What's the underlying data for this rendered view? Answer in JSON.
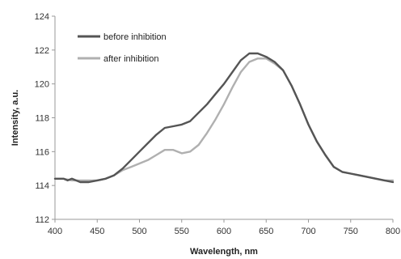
{
  "chart_data": {
    "type": "line",
    "title": "",
    "xlabel": "Wavelength, nm",
    "ylabel": "Intensity, a.u.",
    "xlim": [
      400,
      800
    ],
    "ylim": [
      112,
      124
    ],
    "x_ticks": [
      400,
      450,
      500,
      550,
      600,
      650,
      700,
      750,
      800
    ],
    "y_ticks": [
      112,
      114,
      116,
      118,
      120,
      122,
      124
    ],
    "x_tick_labels": [
      "400",
      "450",
      "500",
      "550",
      "600",
      "650",
      "700",
      "750",
      "800"
    ],
    "y_tick_labels": [
      "112",
      "114",
      "116",
      "118",
      "120",
      "122",
      "124"
    ],
    "grid": false,
    "legend_position": "top-left",
    "series": [
      {
        "name": "before inhibition",
        "color": "#555555",
        "points": [
          [
            400,
            114.4
          ],
          [
            410,
            114.4
          ],
          [
            415,
            114.3
          ],
          [
            420,
            114.4
          ],
          [
            425,
            114.3
          ],
          [
            430,
            114.2
          ],
          [
            440,
            114.2
          ],
          [
            450,
            114.3
          ],
          [
            460,
            114.4
          ],
          [
            470,
            114.6
          ],
          [
            480,
            115.0
          ],
          [
            490,
            115.5
          ],
          [
            500,
            116.0
          ],
          [
            510,
            116.5
          ],
          [
            520,
            117.0
          ],
          [
            530,
            117.4
          ],
          [
            540,
            117.5
          ],
          [
            550,
            117.6
          ],
          [
            560,
            117.8
          ],
          [
            570,
            118.3
          ],
          [
            580,
            118.8
          ],
          [
            590,
            119.4
          ],
          [
            600,
            120.0
          ],
          [
            610,
            120.7
          ],
          [
            620,
            121.4
          ],
          [
            630,
            121.8
          ],
          [
            640,
            121.8
          ],
          [
            650,
            121.6
          ],
          [
            660,
            121.3
          ],
          [
            670,
            120.8
          ],
          [
            680,
            119.9
          ],
          [
            690,
            118.8
          ],
          [
            700,
            117.6
          ],
          [
            710,
            116.6
          ],
          [
            720,
            115.8
          ],
          [
            730,
            115.1
          ],
          [
            740,
            114.8
          ],
          [
            750,
            114.7
          ],
          [
            760,
            114.6
          ],
          [
            770,
            114.5
          ],
          [
            780,
            114.4
          ],
          [
            790,
            114.3
          ],
          [
            800,
            114.2
          ]
        ]
      },
      {
        "name": "after inhibition",
        "color": "#b0b0b0",
        "points": [
          [
            400,
            114.4
          ],
          [
            410,
            114.4
          ],
          [
            420,
            114.3
          ],
          [
            430,
            114.3
          ],
          [
            440,
            114.3
          ],
          [
            450,
            114.3
          ],
          [
            460,
            114.4
          ],
          [
            470,
            114.6
          ],
          [
            480,
            114.9
          ],
          [
            490,
            115.1
          ],
          [
            500,
            115.3
          ],
          [
            510,
            115.5
          ],
          [
            520,
            115.8
          ],
          [
            530,
            116.1
          ],
          [
            540,
            116.1
          ],
          [
            550,
            115.9
          ],
          [
            560,
            116.0
          ],
          [
            570,
            116.4
          ],
          [
            580,
            117.1
          ],
          [
            590,
            117.9
          ],
          [
            600,
            118.8
          ],
          [
            610,
            119.8
          ],
          [
            620,
            120.7
          ],
          [
            630,
            121.3
          ],
          [
            640,
            121.5
          ],
          [
            650,
            121.5
          ],
          [
            660,
            121.2
          ],
          [
            670,
            120.8
          ],
          [
            680,
            119.9
          ],
          [
            690,
            118.8
          ],
          [
            700,
            117.6
          ],
          [
            710,
            116.6
          ],
          [
            720,
            115.8
          ],
          [
            730,
            115.1
          ],
          [
            740,
            114.8
          ],
          [
            750,
            114.7
          ],
          [
            760,
            114.6
          ],
          [
            770,
            114.5
          ],
          [
            780,
            114.4
          ],
          [
            790,
            114.3
          ],
          [
            800,
            114.3
          ]
        ]
      }
    ]
  }
}
